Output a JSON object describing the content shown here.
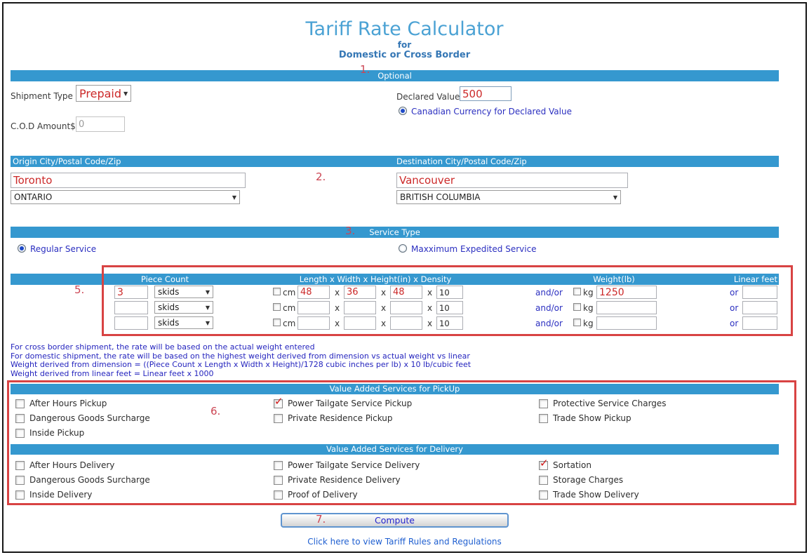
{
  "page": {
    "title": "Tariff Rate Calculator",
    "subtitle1": "for",
    "subtitle2": "Domestic or Cross Border"
  },
  "annotations": {
    "n1": "1.",
    "n2": "2.",
    "n3": "3.",
    "n5": "5.",
    "n6": "6.",
    "n7": "7."
  },
  "optional": {
    "header": "Optional",
    "shipment_type_label": "Shipment Type",
    "shipment_type_value": "Prepaid",
    "cod_label": "C.O.D Amount$",
    "cod_value": "0",
    "declared_label": "Declared Value$",
    "declared_value": "500",
    "currency_radio": {
      "label": "Canadian Currency for Declared Value",
      "selected": true
    }
  },
  "route": {
    "origin_header": "Origin City/Postal Code/Zip",
    "destination_header": "Destination City/Postal Code/Zip",
    "origin_city": "Toronto",
    "origin_region": "ONTARIO",
    "destination_city": "Vancouver",
    "destination_region": "BRITISH COLUMBIA"
  },
  "service": {
    "header": "Service Type",
    "options": [
      {
        "label": "Regular Service",
        "selected": true
      },
      {
        "label": "Maxximum Expedited Service",
        "selected": false
      }
    ]
  },
  "pieces": {
    "headers": {
      "piece_count": "Piece Count",
      "dimensions": "Length x Width x Height(in) x Density",
      "weight": "Weight(lb)",
      "linear": "Linear feet"
    },
    "labels": {
      "cm": "cm",
      "kg": "kg",
      "andor": "and/or",
      "or": "or",
      "x": "x"
    },
    "rows": [
      {
        "count": "3",
        "unit": "skids",
        "cm": false,
        "length": "48",
        "width": "36",
        "height": "48",
        "density": "10",
        "kg": false,
        "weight": "1250",
        "linear": ""
      },
      {
        "count": "",
        "unit": "skids",
        "cm": false,
        "length": "",
        "width": "",
        "height": "",
        "density": "10",
        "kg": false,
        "weight": "",
        "linear": ""
      },
      {
        "count": "",
        "unit": "skids",
        "cm": false,
        "length": "",
        "width": "",
        "height": "",
        "density": "10",
        "kg": false,
        "weight": "",
        "linear": ""
      }
    ]
  },
  "notes": {
    "line1": "For cross border shipment, the rate will be based on the actual weight entered",
    "line2": "For domestic shipment, the rate will be based on the highest weight derived from dimension vs actual weight vs linear",
    "line3": "Weight derived from dimension = ((Piece Count x Length x Width x Height)/1728 cubic inches per lb) x 10 lb/cubic feet",
    "line4": "Weight derived from linear feet = Linear feet x 1000"
  },
  "vas_pickup": {
    "header": "Value Added Services for PickUp",
    "columns": [
      [
        {
          "label": "After Hours Pickup",
          "checked": false
        },
        {
          "label": "Dangerous Goods Surcharge",
          "checked": false
        },
        {
          "label": "Inside Pickup",
          "checked": false
        }
      ],
      [
        {
          "label": "Power Tailgate Service Pickup",
          "checked": true
        },
        {
          "label": "Private Residence Pickup",
          "checked": false
        }
      ],
      [
        {
          "label": "Protective Service Charges",
          "checked": false
        },
        {
          "label": "Trade Show Pickup",
          "checked": false
        }
      ]
    ]
  },
  "vas_delivery": {
    "header": "Value Added Services for Delivery",
    "columns": [
      [
        {
          "label": "After Hours Delivery",
          "checked": false
        },
        {
          "label": "Dangerous Goods Surcharge",
          "checked": false
        },
        {
          "label": "Inside Delivery",
          "checked": false
        }
      ],
      [
        {
          "label": "Power Tailgate Service Delivery",
          "checked": false
        },
        {
          "label": "Private Residence Delivery",
          "checked": false
        },
        {
          "label": "Proof of Delivery",
          "checked": false
        }
      ],
      [
        {
          "label": "Sortation",
          "checked": true
        },
        {
          "label": "Storage Charges",
          "checked": false
        },
        {
          "label": "Trade Show Delivery",
          "checked": false
        }
      ]
    ]
  },
  "footer": {
    "compute_label": "Compute",
    "link": "Click here to view Tariff Rules and Regulations"
  },
  "colors": {
    "bar": "#3598cf",
    "title": "#4ba2d4",
    "subtitle": "#3577b5",
    "red_value": "#cc2929",
    "blue_text": "#2b2fc0",
    "annotation": "#cc4553",
    "red_box": "#d84343"
  }
}
